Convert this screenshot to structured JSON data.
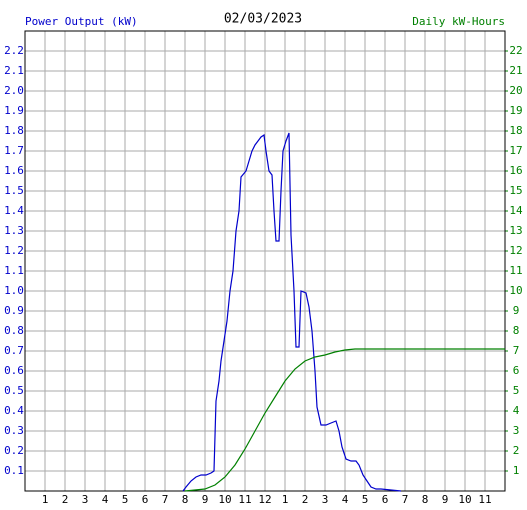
{
  "chart_data": {
    "type": "line",
    "title": "02/03/2023",
    "grid": true,
    "xlim": [
      0,
      24
    ],
    "xticks": [
      1,
      2,
      3,
      4,
      5,
      6,
      7,
      8,
      9,
      10,
      11,
      12,
      {
        "value": 13,
        "label": "1"
      },
      {
        "value": 14,
        "label": "2"
      },
      {
        "value": 15,
        "label": "3"
      },
      {
        "value": 16,
        "label": "4"
      },
      {
        "value": 17,
        "label": "5"
      },
      {
        "value": 18,
        "label": "6"
      },
      {
        "value": 19,
        "label": "7"
      },
      {
        "value": 20,
        "label": "8"
      },
      {
        "value": 21,
        "label": "9"
      },
      {
        "value": 22,
        "label": "10"
      },
      {
        "value": 23,
        "label": "11"
      }
    ],
    "ylim": [
      0,
      2.3
    ],
    "yticks": [
      0.1,
      0.2,
      0.3,
      0.4,
      0.5,
      0.6,
      0.7,
      0.8,
      0.9,
      {
        "value": 1,
        "label": "1.0"
      },
      1.1,
      1.2,
      1.3,
      1.4,
      1.5,
      1.6,
      1.7,
      1.8,
      1.9,
      {
        "value": 2,
        "label": "2.0"
      },
      2.1,
      2.2
    ],
    "y2lim": [
      0,
      23
    ],
    "y2ticks": [
      1,
      2,
      3,
      4,
      5,
      6,
      7,
      8,
      9,
      10,
      11,
      12,
      13,
      14,
      15,
      16,
      17,
      18,
      19,
      20,
      21,
      22
    ],
    "series": [
      {
        "name": "Power Output (kW)",
        "color": "#0000cc",
        "axis": "y",
        "x": [
          7.9,
          8.05,
          8.3,
          8.55,
          8.8,
          9.05,
          9.3,
          9.45,
          9.55,
          9.7,
          9.8,
          9.95,
          10.1,
          10.25,
          10.4,
          10.55,
          10.7,
          10.8,
          11.05,
          11.2,
          11.35,
          11.5,
          11.65,
          11.8,
          11.95,
          12.05,
          12.2,
          12.35,
          12.45,
          12.55,
          12.7,
          12.8,
          12.9,
          13.05,
          13.2,
          13.3,
          13.45,
          13.55,
          13.7,
          13.8,
          14.05,
          14.2,
          14.35,
          14.5,
          14.6,
          14.8,
          15.05,
          15.3,
          15.55,
          15.7,
          15.85,
          16.05,
          16.3,
          16.55,
          16.7,
          16.9,
          17.1,
          17.3,
          17.55,
          17.8,
          18.8
        ],
        "values": [
          0,
          0.02,
          0.05,
          0.07,
          0.08,
          0.08,
          0.09,
          0.1,
          0.45,
          0.55,
          0.65,
          0.75,
          0.85,
          1.0,
          1.1,
          1.3,
          1.4,
          1.57,
          1.6,
          1.65,
          1.7,
          1.73,
          1.75,
          1.77,
          1.78,
          1.7,
          1.6,
          1.58,
          1.4,
          1.25,
          1.25,
          1.5,
          1.7,
          1.75,
          1.79,
          1.28,
          1.0,
          0.72,
          0.72,
          1.0,
          0.99,
          0.92,
          0.8,
          0.6,
          0.42,
          0.33,
          0.33,
          0.34,
          0.35,
          0.3,
          0.22,
          0.16,
          0.15,
          0.15,
          0.13,
          0.08,
          0.05,
          0.02,
          0.01,
          0.01,
          0
        ]
      },
      {
        "name": "Daily kW-Hours",
        "color": "#008000",
        "axis": "y2",
        "x": [
          8.0,
          9.0,
          9.5,
          10.0,
          10.5,
          11.0,
          11.5,
          12.0,
          12.5,
          13.0,
          13.5,
          14.0,
          14.5,
          15.0,
          15.5,
          16.0,
          16.5,
          17.0,
          24
        ],
        "values": [
          0,
          0.1,
          0.3,
          0.7,
          1.3,
          2.1,
          3.0,
          3.9,
          4.7,
          5.5,
          6.1,
          6.5,
          6.7,
          6.8,
          6.95,
          7.05,
          7.1,
          7.1,
          7.1
        ]
      }
    ]
  }
}
